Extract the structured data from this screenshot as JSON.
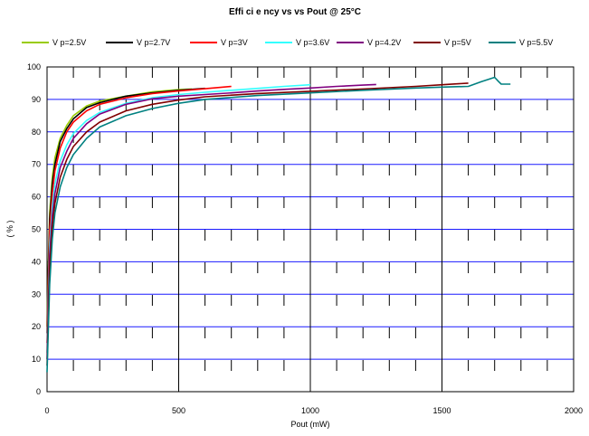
{
  "chart_data": {
    "type": "line",
    "title": "Effi ci e ncy  vs    vs Pout @    25°C",
    "xlabel": "Pout (mW)",
    "ylabel": "( % )",
    "xlim": [
      0,
      2000
    ],
    "ylim": [
      0,
      100
    ],
    "x_ticks": [
      "0",
      "500",
      "1000",
      "1500",
      "2000"
    ],
    "y_ticks": [
      "0",
      "10",
      "20",
      "30",
      "40",
      "50",
      "60",
      "70",
      "80",
      "90",
      "100"
    ],
    "grid": true,
    "legend_position": "top",
    "series": [
      {
        "name": "V p=2.5V",
        "color": "#99cc00",
        "x": [
          0,
          5,
          10,
          20,
          30,
          50,
          75,
          100,
          150,
          200,
          300,
          400,
          500,
          550
        ],
        "y": [
          20,
          40,
          55,
          66,
          72,
          78,
          82,
          85,
          88,
          89.5,
          91,
          92.3,
          93,
          93.2
        ]
      },
      {
        "name": "V p=2.7V",
        "color": "#000000",
        "x": [
          0,
          5,
          10,
          20,
          30,
          50,
          75,
          100,
          150,
          200,
          300,
          400,
          500,
          600
        ],
        "y": [
          18,
          38,
          53,
          64,
          70,
          77,
          81,
          84,
          87.5,
          89,
          91,
          92,
          92.8,
          93.4
        ]
      },
      {
        "name": "V p=3V",
        "color": "#ff0000",
        "x": [
          0,
          5,
          10,
          20,
          30,
          50,
          75,
          100,
          150,
          200,
          300,
          400,
          500,
          600,
          700
        ],
        "y": [
          15,
          35,
          50,
          61,
          68,
          75,
          80,
          83,
          86.5,
          88.5,
          90.5,
          91.8,
          92.6,
          93.3,
          94
        ]
      },
      {
        "name": "V p=3.6V",
        "color": "#33ffff",
        "x": [
          0,
          5,
          10,
          20,
          30,
          50,
          75,
          100,
          150,
          200,
          300,
          400,
          500,
          600,
          700,
          800,
          900,
          1000
        ],
        "y": [
          12,
          30,
          45,
          57,
          64,
          71,
          76,
          79.5,
          83.5,
          86,
          88.8,
          90.5,
          91.5,
          92.2,
          92.8,
          93.4,
          94,
          94.5
        ]
      },
      {
        "name": "V p=4.2V",
        "color": "#800080",
        "x": [
          0,
          5,
          10,
          20,
          30,
          50,
          75,
          100,
          150,
          200,
          300,
          400,
          500,
          600,
          700,
          800,
          900,
          1000,
          1100,
          1200,
          1250
        ],
        "y": [
          10,
          27,
          42,
          54,
          61,
          69,
          74,
          78,
          82.5,
          85.5,
          88.5,
          90.2,
          91,
          91.5,
          92,
          92.6,
          93.1,
          93.5,
          94,
          94.4,
          94.6
        ]
      },
      {
        "name": "V p=5V",
        "color": "#800000",
        "x": [
          0,
          5,
          10,
          20,
          30,
          50,
          75,
          100,
          150,
          200,
          300,
          400,
          500,
          600,
          800,
          1000,
          1200,
          1400,
          1500,
          1600
        ],
        "y": [
          8,
          24,
          38,
          51,
          58,
          66,
          71.5,
          75.5,
          80,
          83,
          86.5,
          88.5,
          89.8,
          90.8,
          91.8,
          92.5,
          93.2,
          94,
          94.5,
          95
        ]
      },
      {
        "name": "V p=5.5V",
        "color": "#008080",
        "x": [
          0,
          5,
          10,
          20,
          30,
          50,
          75,
          100,
          150,
          200,
          300,
          400,
          500,
          600,
          800,
          1000,
          1200,
          1400,
          1500,
          1600,
          1650,
          1700,
          1715,
          1725,
          1760
        ],
        "y": [
          6,
          20,
          33,
          47,
          55,
          63,
          69,
          73,
          78,
          81.5,
          85,
          87.2,
          88.8,
          90,
          91.2,
          92,
          92.8,
          93.5,
          93.8,
          94,
          95.5,
          96.8,
          95.5,
          94.7,
          94.7
        ]
      }
    ]
  }
}
